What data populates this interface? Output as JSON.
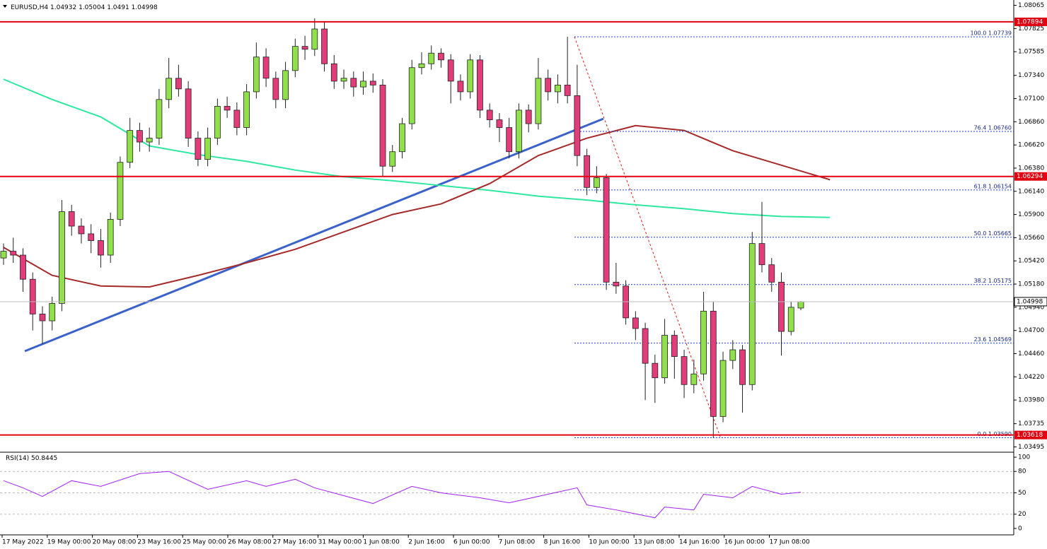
{
  "chart_data": {
    "type": "candlestick",
    "title": "EURUSD,H4",
    "open": [
      1.0545,
      1.0552,
      1.0548,
      1.0523,
      1.0487,
      1.048,
      1.0498,
      1.0593,
      1.0578,
      1.057,
      1.0563,
      1.0548,
      1.0585,
      1.0644,
      1.0677,
      1.0665,
      1.0669,
      1.0709,
      1.0731,
      1.072,
      1.0669,
      1.0647,
      1.0669,
      1.0702,
      1.0698,
      1.068,
      1.0717,
      1.0753,
      1.0731,
      1.0709,
      1.0739,
      1.0764,
      1.0761,
      1.0782,
      1.0746,
      1.0728,
      1.0731,
      1.0722,
      1.0728,
      1.0724,
      1.064,
      1.0655,
      1.0684,
      1.0742,
      1.0746,
      1.0757,
      1.075,
      1.0728,
      1.0717,
      1.075,
      1.0698,
      1.0688,
      1.068,
      1.0655,
      1.0698,
      1.0684,
      1.0731,
      1.0717,
      1.0724,
      1.0713,
      1.0651,
      1.0618,
      1.0628,
      1.052,
      1.0516,
      1.0483,
      1.0472,
      1.0436,
      1.0421,
      1.0465,
      1.0443,
      1.0414,
      1.0425,
      1.049,
      1.0381,
      1.0439,
      1.045,
      1.0414,
      1.056,
      1.0538,
      1.052,
      1.0469,
      1.04932
    ],
    "high": [
      1.056,
      1.0566,
      1.0555,
      1.053,
      1.0495,
      1.0505,
      1.0605,
      1.06,
      1.0586,
      1.058,
      1.0575,
      1.0592,
      1.065,
      1.069,
      1.0685,
      1.068,
      1.072,
      1.0752,
      1.0745,
      1.0728,
      1.0676,
      1.068,
      1.071,
      1.0712,
      1.0706,
      1.0725,
      1.0768,
      1.0762,
      1.0738,
      1.0748,
      1.0772,
      1.0775,
      1.0793,
      1.079,
      1.0755,
      1.074,
      1.0738,
      1.0738,
      1.0736,
      1.073,
      1.0662,
      1.069,
      1.075,
      1.0758,
      1.0765,
      1.0762,
      1.0756,
      1.0735,
      1.0756,
      1.0755,
      1.0705,
      1.0695,
      1.069,
      1.0705,
      1.0704,
      1.0752,
      1.074,
      1.0735,
      1.07739,
      1.0745,
      1.0658,
      1.064,
      1.0632,
      1.054,
      1.0522,
      1.049,
      1.0478,
      1.0445,
      1.0482,
      1.047,
      1.045,
      1.044,
      1.051,
      1.05,
      1.0448,
      1.046,
      1.0455,
      1.0572,
      1.0603,
      1.0545,
      1.053,
      1.05,
      1.05004
    ],
    "low": [
      1.0538,
      1.054,
      1.051,
      1.047,
      1.0456,
      1.047,
      1.049,
      1.0568,
      1.056,
      1.055,
      1.0535,
      1.054,
      1.0578,
      1.0638,
      1.0655,
      1.0655,
      1.0662,
      1.07,
      1.0712,
      1.066,
      1.064,
      1.064,
      1.0662,
      1.069,
      1.0672,
      1.0672,
      1.071,
      1.0722,
      1.07,
      1.07,
      1.0732,
      1.075,
      1.0754,
      1.0738,
      1.072,
      1.072,
      1.0712,
      1.0714,
      1.0716,
      1.063,
      1.0634,
      1.0648,
      1.0678,
      1.0735,
      1.074,
      1.0742,
      1.0705,
      1.0708,
      1.071,
      1.069,
      1.068,
      1.0665,
      1.0648,
      1.0648,
      1.0675,
      1.0678,
      1.0708,
      1.0705,
      1.0705,
      1.064,
      1.061,
      1.0612,
      1.0512,
      1.0508,
      1.0476,
      1.046,
      1.0398,
      1.0395,
      1.0415,
      1.042,
      1.04,
      1.0405,
      1.0418,
      1.0359,
      1.0375,
      1.043,
      1.0385,
      1.0408,
      1.053,
      1.051,
      1.0444,
      1.0465,
      1.0491
    ],
    "close": [
      1.0552,
      1.0548,
      1.0523,
      1.0487,
      1.048,
      1.0498,
      1.0593,
      1.0578,
      1.057,
      1.0563,
      1.0548,
      1.0585,
      1.0644,
      1.0677,
      1.0665,
      1.0669,
      1.0709,
      1.0731,
      1.072,
      1.0669,
      1.0647,
      1.0669,
      1.0702,
      1.0698,
      1.068,
      1.0717,
      1.0753,
      1.0731,
      1.0709,
      1.0739,
      1.0764,
      1.0761,
      1.0782,
      1.0746,
      1.0728,
      1.0731,
      1.0722,
      1.0728,
      1.0724,
      1.064,
      1.0655,
      1.0684,
      1.0742,
      1.0746,
      1.0757,
      1.075,
      1.0728,
      1.0717,
      1.075,
      1.0698,
      1.0688,
      1.068,
      1.0655,
      1.0698,
      1.0684,
      1.0731,
      1.0717,
      1.0724,
      1.0713,
      1.0651,
      1.0618,
      1.0628,
      1.052,
      1.0516,
      1.0483,
      1.0472,
      1.0436,
      1.0421,
      1.0465,
      1.0443,
      1.0414,
      1.0425,
      1.049,
      1.0381,
      1.0439,
      1.045,
      1.0414,
      1.056,
      1.0538,
      1.052,
      1.0469,
      1.0494,
      1.04998
    ],
    "up_color": "#8fe04a",
    "down_color": "#e23c7a",
    "ylim": [
      1.0344,
      1.0812
    ],
    "yticks": [
      1.08065,
      1.07825,
      1.07585,
      {
        "value": 1.0734,
        "label": "1.07340"
      },
      {
        "value": 1.071,
        "label": "1.07100"
      },
      {
        "value": 1.0686,
        "label": "1.06860"
      },
      {
        "value": 1.0662,
        "label": "1.06620"
      },
      {
        "value": 1.0638,
        "label": "1.06380"
      },
      {
        "value": 1.0614,
        "label": "1.06140"
      },
      {
        "value": 1.059,
        "label": "1.05900"
      },
      {
        "value": 1.0566,
        "label": "1.05660"
      },
      {
        "value": 1.0542,
        "label": "1.05420"
      },
      {
        "value": 1.0518,
        "label": "1.05180"
      },
      {
        "value": 1.0494,
        "label": "1.04940"
      },
      {
        "value": 1.047,
        "label": "1.04700"
      },
      {
        "value": 1.0446,
        "label": "1.04460"
      },
      {
        "value": 1.0422,
        "label": "1.04220"
      },
      {
        "value": 1.0398,
        "label": "1.03980"
      },
      1.03735,
      1.03495
    ],
    "x_labels": [
      "17 May 2022",
      "19 May 00:00",
      "20 May 08:00",
      "23 May 16:00",
      "25 May 00:00",
      "26 May 08:00",
      "27 May 16:00",
      "31 May 00:00",
      "1 Jun 08:00",
      "2 Jun 16:00",
      "6 Jun 00:00",
      "7 Jun 08:00",
      "8 Jun 16:00",
      "10 Jun 00:00",
      "13 Jun 08:00",
      "14 Jun 16:00",
      "16 Jun 00:00",
      "17 Jun 08:00"
    ],
    "moving_averages": [
      {
        "color": "#2ee8a0",
        "x": [
          0,
          5,
          10,
          15,
          20,
          25,
          30,
          35,
          40,
          45,
          50,
          55,
          60,
          65,
          70,
          75,
          80,
          85
        ],
        "values": [
          1.073,
          1.0709,
          1.0691,
          1.0661,
          1.0652,
          1.0645,
          1.0636,
          1.0629,
          1.0625,
          1.062,
          1.0615,
          1.0609,
          1.0605,
          1.06,
          1.0596,
          1.0591,
          1.0588,
          1.0587
        ]
      },
      {
        "color": "#a52a2a",
        "x": [
          0,
          5,
          10,
          15,
          20,
          25,
          30,
          35,
          40,
          45,
          50,
          55,
          60,
          65,
          70,
          75,
          80,
          85
        ],
        "values": [
          1.0556,
          1.0527,
          1.0516,
          1.0515,
          1.0527,
          1.054,
          1.0554,
          1.0572,
          1.059,
          1.0601,
          1.0622,
          1.0651,
          1.0669,
          1.0682,
          1.0677,
          1.0656,
          1.0641,
          1.0626
        ]
      }
    ],
    "levels": [
      {
        "value": 1.07894,
        "color": "#e0000f"
      },
      {
        "value": 1.06294,
        "color": "#e0000f"
      },
      {
        "value": 1.03618,
        "color": "#e0000f"
      }
    ],
    "fibonacci": [
      {
        "label": "100.0 1.07739",
        "value": 1.07739
      },
      {
        "label": "76.4 1.06760",
        "value": 1.0676
      },
      {
        "label": "61.8 1.06154",
        "value": 1.06154
      },
      {
        "label": "50.0 1.05665",
        "value": 1.05665
      },
      {
        "label": "38.2 1.05175",
        "value": 1.05175
      },
      {
        "label": "23.6 1.04569",
        "value": 1.04569
      },
      {
        "label": "0.0 1.03590",
        "value": 1.0359
      }
    ],
    "rsi": {
      "name": "RSI(14)",
      "color": "#a020f0",
      "ylim": [
        -9,
        105
      ],
      "yticks": [
        0,
        20,
        50,
        80,
        100
      ],
      "levels": [
        20,
        50,
        80
      ],
      "x": [
        0,
        2,
        4,
        7,
        10,
        14,
        17,
        21,
        25,
        27,
        30,
        32,
        38,
        42,
        45,
        49,
        52,
        56,
        59,
        60,
        63,
        67,
        68,
        71,
        72,
        75,
        77,
        80,
        82
      ],
      "values": [
        67,
        57,
        45,
        67,
        59,
        77,
        80,
        55,
        67,
        59,
        69,
        57,
        35,
        59,
        50,
        43,
        36,
        48,
        57,
        33,
        26,
        15,
        30,
        26,
        48,
        43,
        59,
        48,
        50.8445
      ]
    }
  }
}
